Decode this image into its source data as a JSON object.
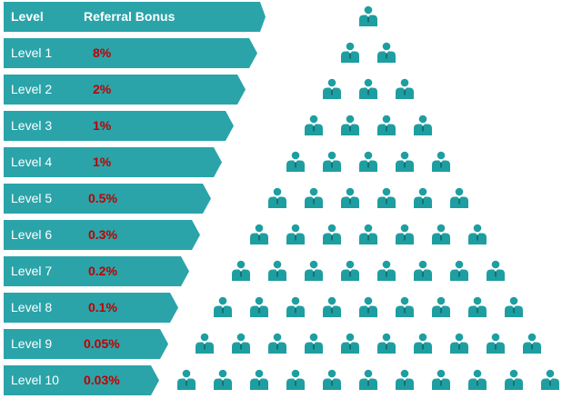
{
  "header": {
    "level_label": "Level",
    "bonus_label": "Referral Bonus"
  },
  "levels": [
    {
      "label": "Level 1",
      "bonus": "8%",
      "people": 2
    },
    {
      "label": "Level 2",
      "bonus": "2%",
      "people": 3
    },
    {
      "label": "Level 3",
      "bonus": "1%",
      "people": 4
    },
    {
      "label": "Level 4",
      "bonus": "1%",
      "people": 5
    },
    {
      "label": "Level 5",
      "bonus": "0.5%",
      "people": 6
    },
    {
      "label": "Level 6",
      "bonus": "0.3%",
      "people": 7
    },
    {
      "label": "Level 7",
      "bonus": "0.2%",
      "people": 8
    },
    {
      "label": "Level 8",
      "bonus": "0.1%",
      "people": 9
    },
    {
      "label": "Level 9",
      "bonus": "0.05%",
      "people": 10
    },
    {
      "label": "Level 10",
      "bonus": "0.03%",
      "people": 11
    }
  ],
  "top_people": 1,
  "colors": {
    "band": "#2aa4a9",
    "bonus_text": "#c00000",
    "person": "#1e9ea0"
  },
  "icon": "person-icon"
}
